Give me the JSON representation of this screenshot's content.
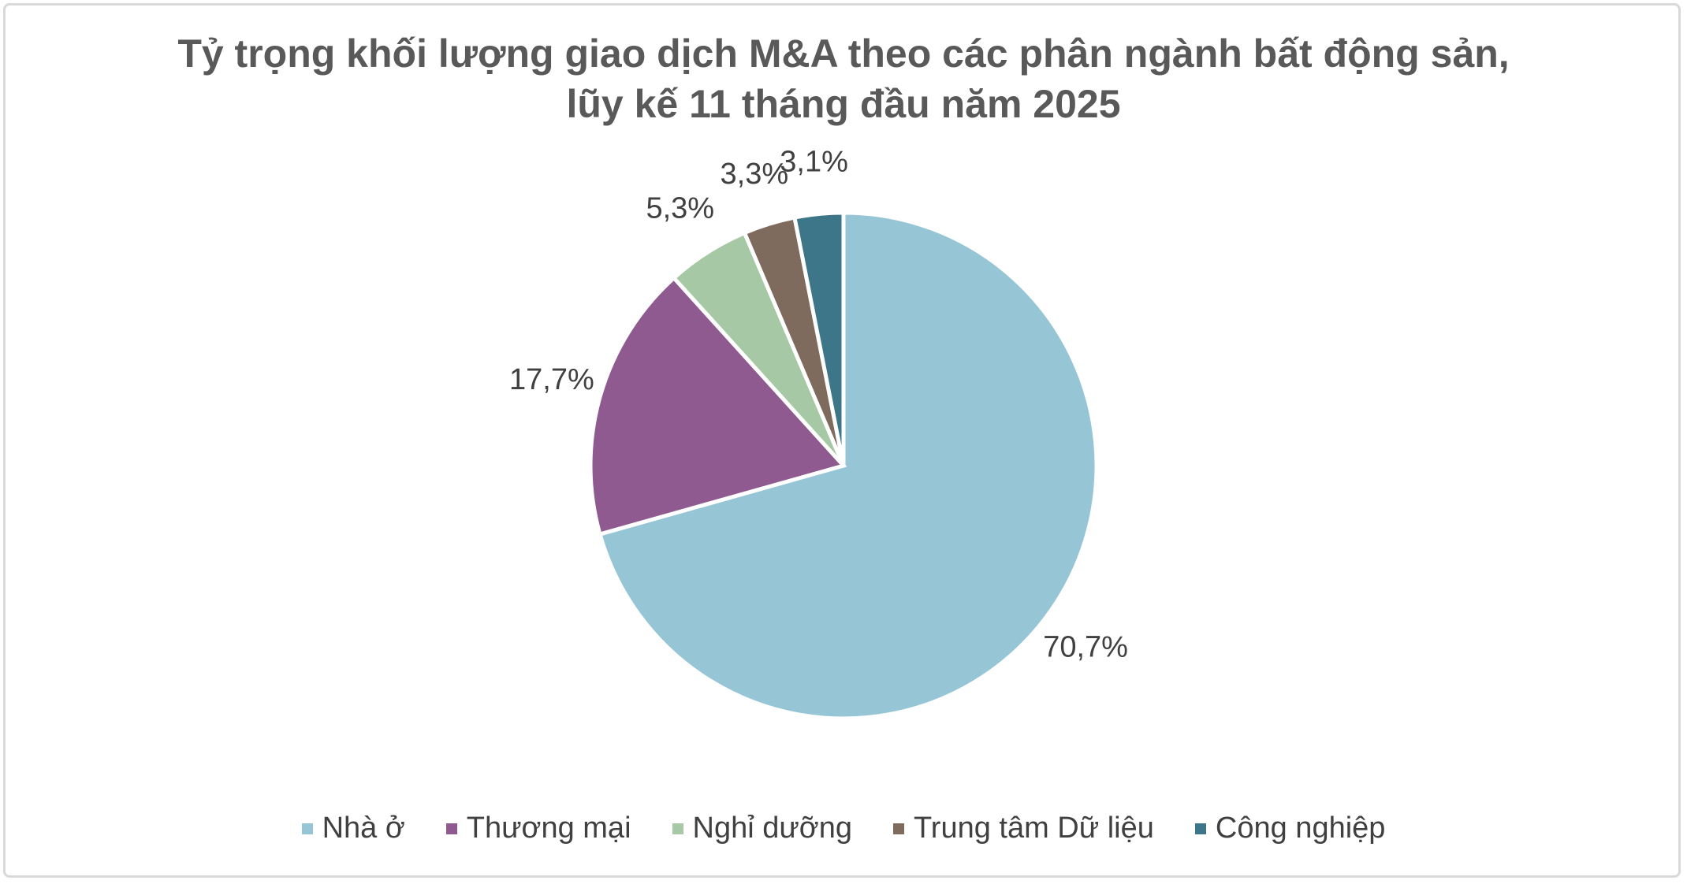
{
  "chart_data": {
    "type": "pie",
    "title": "Tỷ trọng khối lượng giao dịch M&A theo các phân ngành bất động sản, lũy kế 11 tháng đầu năm 2025",
    "categories": [
      "Nhà ở",
      "Thương mại",
      "Nghỉ dưỡng",
      "Trung tâm Dữ liệu",
      "Công nghiệp"
    ],
    "values": [
      70.7,
      17.7,
      5.3,
      3.3,
      3.1
    ],
    "value_labels": [
      "70,7%",
      "17,7%",
      "5,3%",
      "3,3%",
      "3,1%"
    ],
    "colors": [
      "#96c5d5",
      "#8e5a8f",
      "#a6c8a4",
      "#7e6b5e",
      "#3d7589"
    ],
    "legend": "bottom"
  }
}
